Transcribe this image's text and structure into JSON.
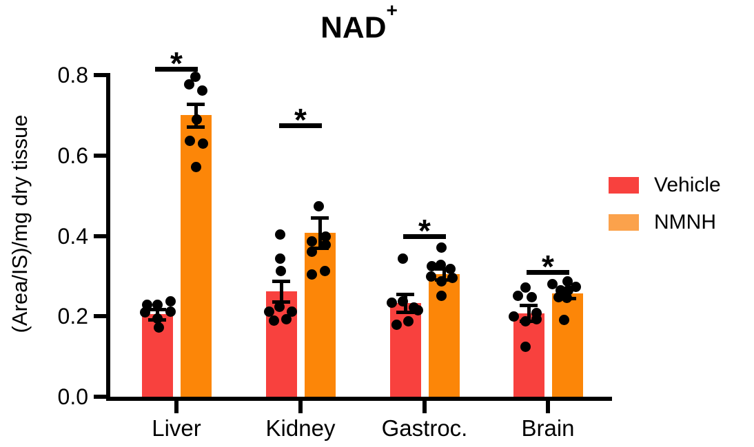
{
  "chart_data": {
    "type": "bar",
    "title": "NAD+",
    "title_base": "NAD",
    "title_superscript": "+",
    "ylabel": "(Area/IS)/mg dry tissue",
    "xlabel": "",
    "ylim": [
      0,
      0.8
    ],
    "yticks": [
      0.0,
      0.2,
      0.4,
      0.6,
      0.8
    ],
    "ytick_labels": [
      "0.0",
      "0.2",
      "0.4",
      "0.6",
      "0.8"
    ],
    "grid": false,
    "legend_position": "right-center",
    "error_bars": "SEM",
    "categories": [
      "Liver",
      "Kidney",
      "Gastroc.",
      "Brain"
    ],
    "series": [
      {
        "name": "Vehicle",
        "color": "#F8413E",
        "means": [
          0.205,
          0.262,
          0.233,
          0.208
        ],
        "sem": [
          0.013,
          0.026,
          0.022,
          0.019
        ],
        "points_dx_value": [
          [
            [
              -15,
              0.228
            ],
            [
              0,
              0.229
            ],
            [
              19,
              0.238
            ],
            [
              -18,
              0.209
            ],
            [
              19,
              0.211
            ],
            [
              0,
              0.194
            ],
            [
              2,
              0.173
            ]
          ],
          [
            [
              -2,
              0.404
            ],
            [
              -2,
              0.343
            ],
            [
              -1,
              0.313
            ],
            [
              -3,
              0.224
            ],
            [
              -18,
              0.212
            ],
            [
              15,
              0.212
            ],
            [
              7,
              0.192
            ],
            [
              -11,
              0.19
            ]
          ],
          [
            [
              -4,
              0.344
            ],
            [
              -20,
              0.234
            ],
            [
              -4,
              0.237
            ],
            [
              12,
              0.222
            ],
            [
              18,
              0.215
            ],
            [
              4,
              0.188
            ],
            [
              -13,
              0.179
            ]
          ],
          [
            [
              -5,
              0.272
            ],
            [
              -16,
              0.251
            ],
            [
              4,
              0.248
            ],
            [
              11,
              0.208
            ],
            [
              -22,
              0.2
            ],
            [
              11,
              0.193
            ],
            [
              -5,
              0.188
            ],
            [
              -5,
              0.125
            ]
          ]
        ]
      },
      {
        "name": "NMNH",
        "color": "#FC8608",
        "means": [
          0.7,
          0.408,
          0.305,
          0.257
        ],
        "sem": [
          0.028,
          0.038,
          0.014,
          0.012
        ],
        "points_dx_value": [
          [
            [
              -1,
              0.795
            ],
            [
              -10,
              0.777
            ],
            [
              9,
              0.762
            ],
            [
              1,
              0.69
            ],
            [
              -9,
              0.637
            ],
            [
              10,
              0.629
            ],
            [
              0,
              0.572
            ]
          ],
          [
            [
              -2,
              0.473
            ],
            [
              8,
              0.398
            ],
            [
              -12,
              0.386
            ],
            [
              8,
              0.378
            ],
            [
              -12,
              0.361
            ],
            [
              7,
              0.313
            ],
            [
              -12,
              0.304
            ]
          ],
          [
            [
              -4,
              0.371
            ],
            [
              -5,
              0.328
            ],
            [
              -18,
              0.325
            ],
            [
              9,
              0.318
            ],
            [
              -19,
              0.299
            ],
            [
              12,
              0.296
            ],
            [
              -4,
              0.287
            ],
            [
              -4,
              0.251
            ]
          ],
          [
            [
              0,
              0.287
            ],
            [
              -22,
              0.28
            ],
            [
              12,
              0.273
            ],
            [
              -10,
              0.265
            ],
            [
              1,
              0.265
            ],
            [
              -13,
              0.248
            ],
            [
              -1,
              0.246
            ],
            [
              -5,
              0.191
            ]
          ]
        ]
      }
    ],
    "significance": [
      {
        "category": "Liver",
        "label": "*",
        "line_value": 0.815
      },
      {
        "category": "Kidney",
        "label": "*",
        "line_value": 0.675
      },
      {
        "category": "Gastroc.",
        "label": "*",
        "line_value": 0.4
      },
      {
        "category": "Brain",
        "label": "*",
        "line_value": 0.31
      }
    ]
  },
  "legend": {
    "items": [
      {
        "label": "Vehicle",
        "color": "#F8413E"
      },
      {
        "label": "NMNH",
        "color": "#FBA24C"
      }
    ]
  }
}
